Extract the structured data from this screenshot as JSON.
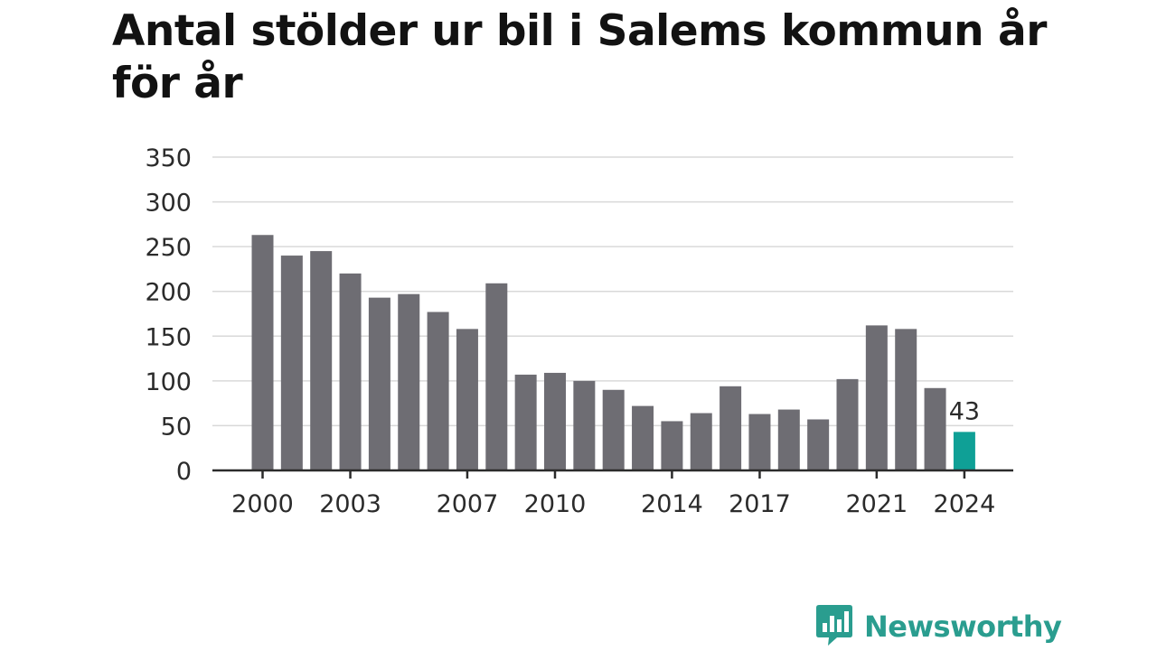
{
  "title": "Antal stölder ur bil i Salems kommun år för år",
  "brand": {
    "name": "Newsworthy",
    "logo_icon": "chart-speech-bubble-icon"
  },
  "colors": {
    "bar": "#6e6d73",
    "highlight": "#0fa096",
    "brand": "#2a9d8f"
  },
  "chart_data": {
    "type": "bar",
    "title": "Antal stölder ur bil i Salems kommun år för år",
    "categories": [
      2000,
      2001,
      2002,
      2003,
      2004,
      2005,
      2006,
      2007,
      2008,
      2009,
      2010,
      2011,
      2012,
      2013,
      2014,
      2015,
      2016,
      2017,
      2018,
      2019,
      2020,
      2021,
      2022,
      2023,
      2024
    ],
    "values": [
      263,
      240,
      245,
      220,
      193,
      197,
      177,
      158,
      209,
      107,
      109,
      100,
      90,
      72,
      55,
      64,
      94,
      63,
      68,
      57,
      102,
      162,
      158,
      92,
      43
    ],
    "ylim": [
      0,
      350
    ],
    "yticks": [
      0,
      50,
      100,
      150,
      200,
      250,
      300,
      350
    ],
    "xtick_labels": [
      "2000",
      "2003",
      "2007",
      "2010",
      "2014",
      "2017",
      "2021",
      "2024"
    ],
    "highlight_category": 2024,
    "highlight_label": "43",
    "grid": true,
    "xlabel": "",
    "ylabel": ""
  }
}
